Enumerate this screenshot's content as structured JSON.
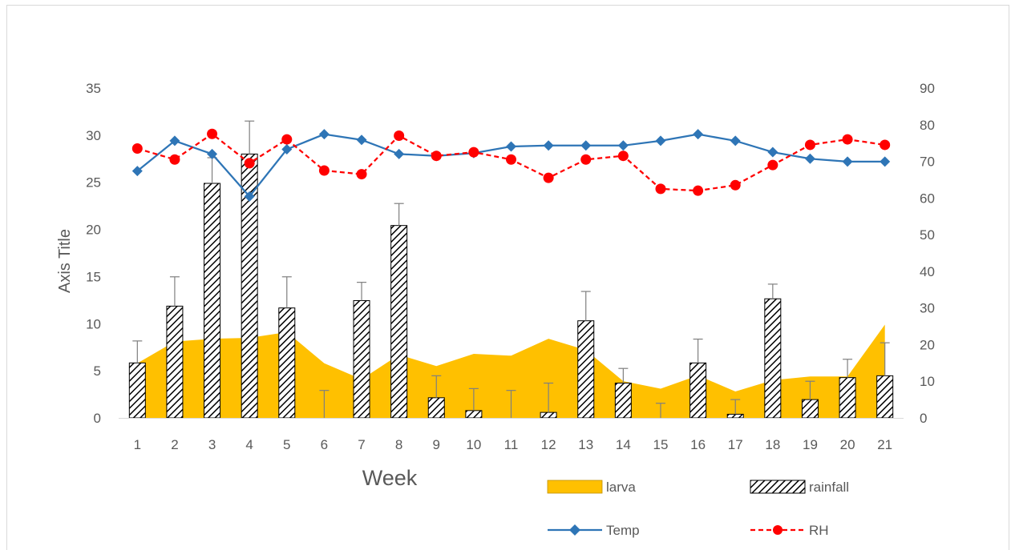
{
  "chart_data": {
    "type": "bar",
    "xlabel": "Week",
    "ylabel": "Axis Title",
    "categories": [
      "1",
      "2",
      "3",
      "4",
      "5",
      "6",
      "7",
      "8",
      "9",
      "10",
      "11",
      "12",
      "13",
      "14",
      "15",
      "16",
      "17",
      "18",
      "19",
      "20",
      "21"
    ],
    "ylim_left": [
      0,
      35
    ],
    "yticks_left": [
      "0",
      "5",
      "10",
      "15",
      "20",
      "25",
      "30",
      "35"
    ],
    "ylim_right": [
      0,
      90
    ],
    "yticks_right": [
      "0",
      "10",
      "20",
      "30",
      "40",
      "50",
      "60",
      "70",
      "80",
      "90"
    ],
    "gridlines": false,
    "legend_position": "bottom-right",
    "colors": {
      "larva": "#ffc000",
      "rainfall": "#ffffff",
      "temp": "#2e75b6",
      "rh": "#ff0000",
      "axis": "#d9d9d9",
      "text": "#595959",
      "error": "#7f7f7f"
    },
    "series": [
      {
        "name": "larva",
        "type": "area",
        "axis": "left",
        "values": [
          5.8,
          8.1,
          8.4,
          8.5,
          9.1,
          5.8,
          4.1,
          6.7,
          5.5,
          6.8,
          6.6,
          8.4,
          7.2,
          3.9,
          3.1,
          4.5,
          2.8,
          4.0,
          4.4,
          4.4,
          9.9
        ]
      },
      {
        "name": "rainfall",
        "type": "bar",
        "axis": "right",
        "pattern": "diagonal-hatch",
        "values": [
          15,
          30.5,
          64,
          72,
          30,
          0,
          32,
          52.5,
          5.5,
          2,
          0,
          1.5,
          26.5,
          9.5,
          0,
          15,
          1,
          32.5,
          5,
          11,
          11.5
        ],
        "error_upper": [
          6,
          8,
          7,
          9,
          8.5,
          7.5,
          5,
          6,
          6,
          6,
          7.5,
          8,
          8,
          4,
          4,
          6.5,
          4,
          4,
          5,
          5,
          9
        ]
      },
      {
        "name": "Temp",
        "type": "line",
        "axis": "left",
        "marker": "diamond",
        "values": [
          26.2,
          29.4,
          28.0,
          23.5,
          28.5,
          30.1,
          29.5,
          28.0,
          27.8,
          28.1,
          28.8,
          28.9,
          28.9,
          28.9,
          29.4,
          30.1,
          29.4,
          28.2,
          27.5,
          27.2,
          27.2
        ]
      },
      {
        "name": "RH",
        "type": "line",
        "axis": "right",
        "marker": "circle",
        "dash": "dashed",
        "values": [
          73.5,
          70.5,
          77.5,
          69.5,
          76,
          67.5,
          66.5,
          77,
          71.5,
          72.5,
          70.5,
          65.5,
          70.5,
          71.5,
          62.5,
          62,
          63.5,
          69,
          74.5,
          76,
          74.5
        ]
      }
    ]
  }
}
